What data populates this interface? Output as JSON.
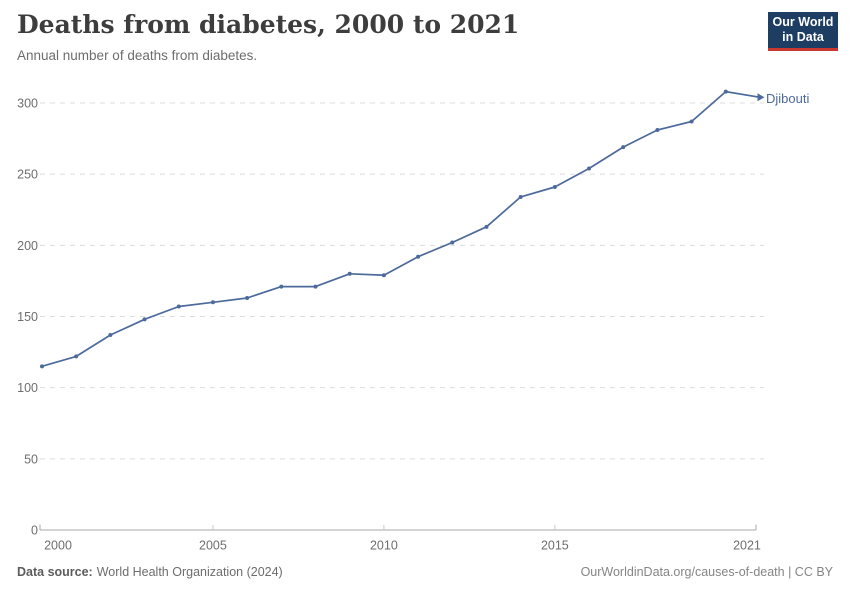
{
  "header": {
    "title": "Deaths from diabetes, 2000 to 2021",
    "subtitle": "Annual number of deaths from diabetes."
  },
  "logo": {
    "line1": "Our World",
    "line2": "in Data",
    "bg_color": "#1d3d63",
    "accent_color": "#c9372e"
  },
  "chart_data": {
    "type": "line",
    "title": "Deaths from diabetes, 2000 to 2021",
    "subtitle": "Annual number of deaths from diabetes.",
    "x": [
      2000,
      2001,
      2002,
      2003,
      2004,
      2005,
      2006,
      2007,
      2008,
      2009,
      2010,
      2011,
      2012,
      2013,
      2014,
      2015,
      2016,
      2017,
      2018,
      2019,
      2020,
      2021
    ],
    "series": [
      {
        "name": "Djibouti",
        "color": "#4C6A9C",
        "values": [
          115,
          122,
          137,
          148,
          157,
          160,
          163,
          171,
          171,
          180,
          179,
          192,
          202,
          213,
          234,
          241,
          254,
          269,
          281,
          287,
          308,
          304
        ]
      }
    ],
    "xlabel": "",
    "ylabel": "",
    "xlim": [
      2000,
      2021
    ],
    "ylim": [
      0,
      310
    ],
    "xticks": [
      2000,
      2005,
      2010,
      2015,
      2021
    ],
    "yticks": [
      0,
      50,
      100,
      150,
      200,
      250,
      300
    ],
    "grid": "horizontal-dashed",
    "legend_position": "end-of-line-label",
    "entity_label": "Djibouti",
    "grid_color": "#dcdcdc",
    "axis_color": "#a8a8a8",
    "tick_text_color": "#6e6e6e"
  },
  "footer": {
    "source_label": "Data source:",
    "source_value": "World Health Organization (2024)",
    "right_text": "OurWorldinData.org/causes-of-death | CC BY"
  }
}
